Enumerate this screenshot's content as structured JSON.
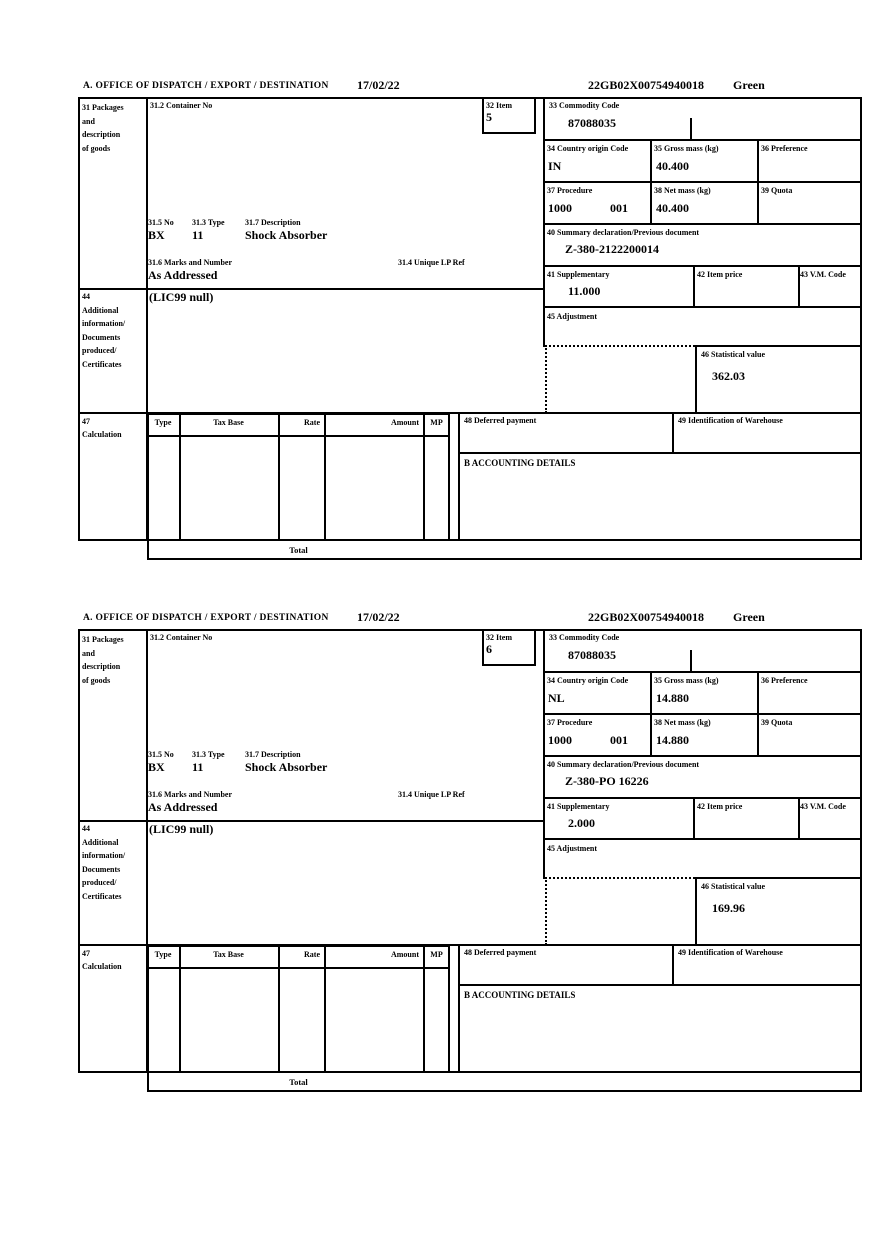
{
  "labels": {
    "office": "A.  OFFICE OF DISPATCH / EXPORT / DESTINATION",
    "box31": [
      "31 Packages",
      "and",
      "description",
      "of goods"
    ],
    "box31_2": "31.2 Container No",
    "box32": "32 Item",
    "box33": "33 Commodity Code",
    "box34": "34 Country origin Code",
    "box35": "35 Gross mass (kg)",
    "box36": "36 Preference",
    "box37": "37 Procedure",
    "box38": "38 Net mass (kg)",
    "box39": "39 Quota",
    "box40": "40 Summary declaration/Previous document",
    "box41": "41 Supplementary",
    "box42": "42 Item price",
    "box43": "43 V.M. Code",
    "box44": [
      "44",
      "Additional",
      "information/",
      "Documents",
      "produced/",
      "Certificates"
    ],
    "box45": "45 Adjustment",
    "box46": "46 Statistical value",
    "box47": [
      "47",
      "Calculation"
    ],
    "box31_5": "31.5 No",
    "box31_3": "31.3 Type",
    "box31_7": "31.7 Description",
    "box31_6": "31.6 Marks and Number",
    "box31_4": "31.4 Unique LP Ref",
    "col_type": "Type",
    "col_tax_base": "Tax Base",
    "col_rate": "Rate",
    "col_amount": "Amount",
    "col_mp": "MP",
    "box48": "48 Deferred payment",
    "box49": "49 Identification of Warehouse",
    "accounting": "B ACCOUNTING DETAILS",
    "total": "Total"
  },
  "sections": [
    {
      "date": "17/02/22",
      "reference": "22GB02X00754940018",
      "status": "Green",
      "item_no": "5",
      "commodity_code": "87088035",
      "country_origin_code": "IN",
      "gross_mass_kg": "40.400",
      "procedure_code": "1000",
      "procedure_code_2": "001",
      "net_mass_kg": "40.400",
      "previous_document": "Z-380-2122200014",
      "supplementary": "11.000",
      "statistical_value": "362.03",
      "package_count": "BX",
      "package_type": "11",
      "goods_description": "Shock Absorber",
      "marks_and_number": "As Addressed",
      "additional_information": "(LIC99 null)"
    },
    {
      "date": "17/02/22",
      "reference": "22GB02X00754940018",
      "status": "Green",
      "item_no": "6",
      "commodity_code": "87088035",
      "country_origin_code": "NL",
      "gross_mass_kg": "14.880",
      "procedure_code": "1000",
      "procedure_code_2": "001",
      "net_mass_kg": "14.880",
      "previous_document": "Z-380-PO 16226",
      "supplementary": "2.000",
      "statistical_value": "169.96",
      "package_count": "BX",
      "package_type": "11",
      "goods_description": "Shock Absorber",
      "marks_and_number": "As Addressed",
      "additional_information": "(LIC99 null)"
    }
  ]
}
